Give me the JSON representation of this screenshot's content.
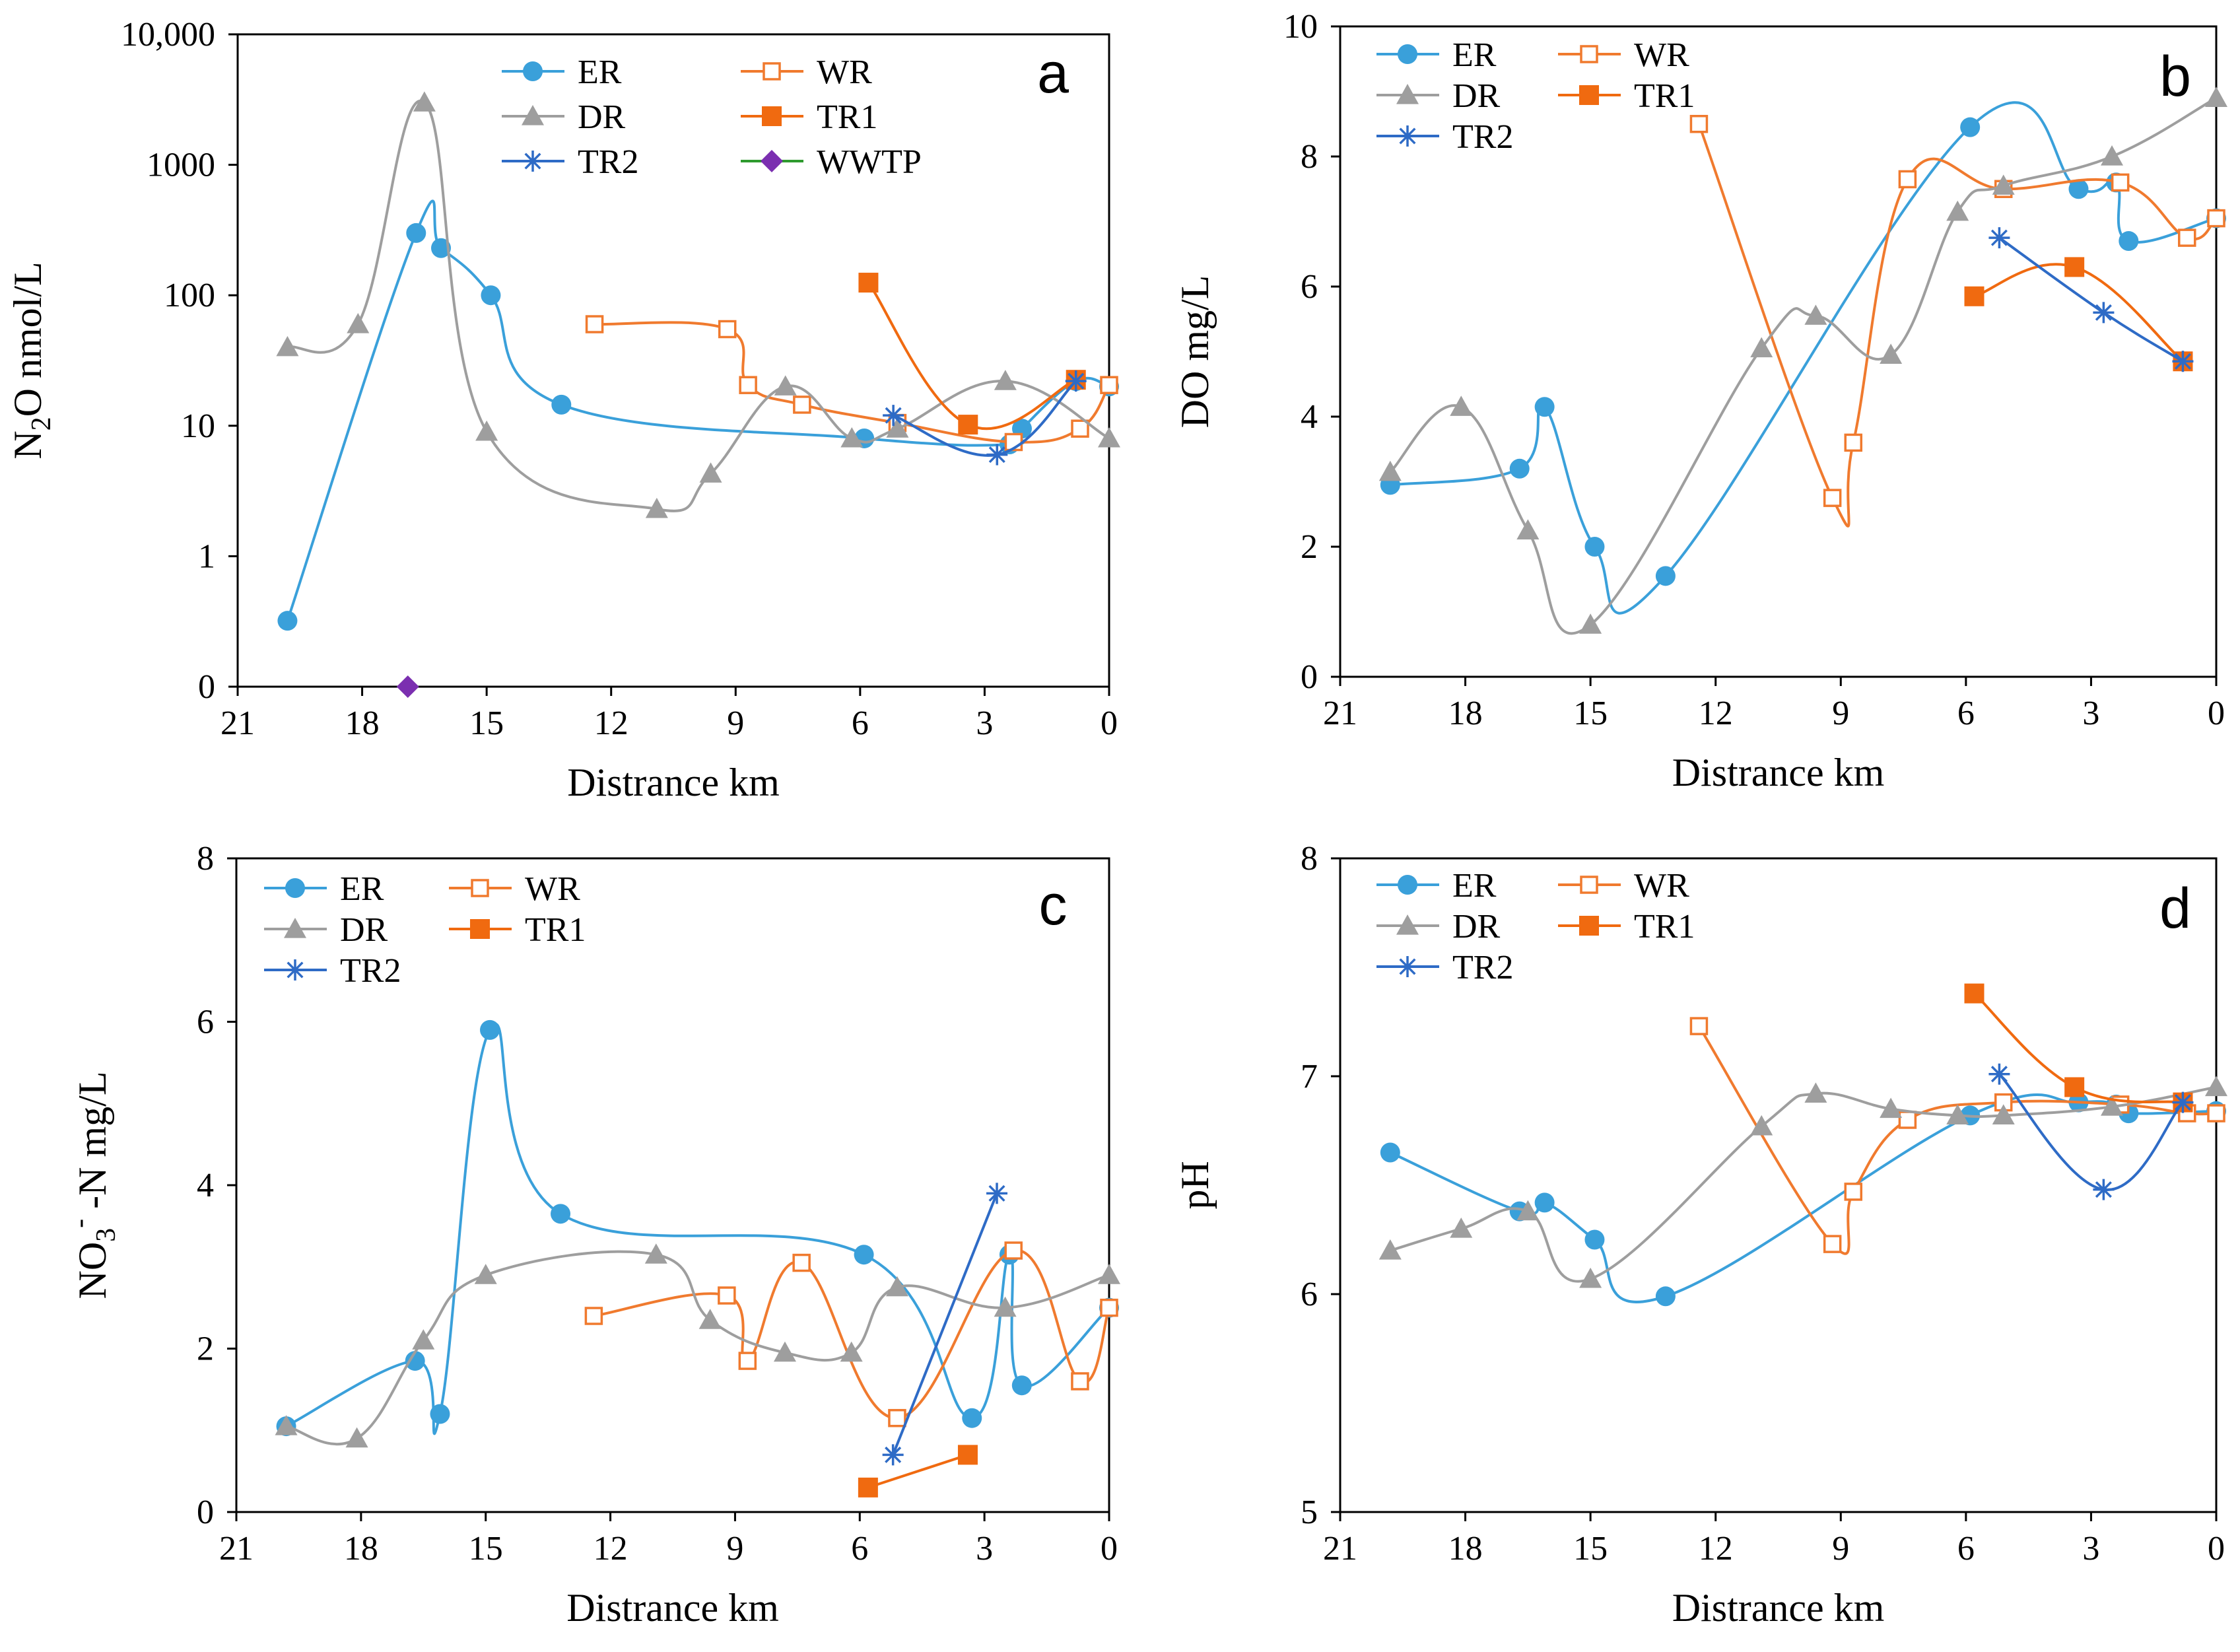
{
  "colors": {
    "ER": "#3AA0DA",
    "WR": "#F07A2E",
    "DR": "#9E9E9E",
    "TR1": "#F06A10",
    "TR2": "#2E6BC6",
    "WWTP_line": "#2E9A2E",
    "WWTP_marker": "#7B2FB0"
  },
  "chart_data": [
    {
      "id": "a",
      "type": "line",
      "panel_label": "a",
      "xlabel": "Distrance km",
      "ylabel": "N2O nmol/L",
      "ylabel_parts": {
        "base": "N",
        "sub": "2",
        "rest": "O nmol/L"
      },
      "xlim": [
        21,
        0
      ],
      "xticks": [
        "21",
        "18",
        "15",
        "12",
        "9",
        "6",
        "3",
        "0"
      ],
      "yscale": "log",
      "yticks": [
        {
          "value": 0.1,
          "label": "0"
        },
        {
          "value": 1,
          "label": "1"
        },
        {
          "value": 10,
          "label": "10"
        },
        {
          "value": 100,
          "label": "100"
        },
        {
          "value": 1000,
          "label": "1000"
        },
        {
          "value": 10000,
          "label": "10,000"
        }
      ],
      "series": [
        {
          "name": "ER",
          "marker": "circle",
          "x": [
            19.8,
            16.7,
            16.1,
            14.9,
            13.2,
            5.9,
            2.4,
            2.1,
            0.8,
            0
          ],
          "y": [
            0.32,
            300,
            230,
            100,
            14.5,
            8.0,
            7.2,
            9.5,
            22,
            20
          ]
        },
        {
          "name": "WR",
          "marker": "square-open",
          "x": [
            12.4,
            9.2,
            8.7,
            7.4,
            5.1,
            2.3,
            0.7,
            0
          ],
          "y": [
            60,
            55,
            20.5,
            14.5,
            10.5,
            7.5,
            9.5,
            20.5
          ]
        },
        {
          "name": "DR",
          "marker": "triangle",
          "x": [
            19.8,
            18.1,
            16.5,
            15.0,
            10.9,
            9.6,
            7.8,
            6.2,
            5.1,
            2.5,
            0
          ],
          "y": [
            40,
            60,
            3000,
            9.0,
            2.3,
            4.3,
            20,
            8.0,
            9.5,
            22,
            8.0
          ]
        },
        {
          "name": "TR1",
          "marker": "square",
          "x": [
            5.8,
            3.4,
            0.8
          ],
          "y": [
            125,
            10.2,
            22.5
          ]
        },
        {
          "name": "TR2",
          "marker": "star",
          "x": [
            5.2,
            2.7,
            0.8
          ],
          "y": [
            12,
            6.0,
            22
          ]
        },
        {
          "name": "WWTP",
          "marker": "diamond",
          "x": [
            16.9
          ],
          "y": [
            0.1
          ]
        }
      ],
      "legend": [
        "ER",
        "WR",
        "DR",
        "TR1",
        "TR2",
        "WWTP"
      ]
    },
    {
      "id": "b",
      "type": "line",
      "panel_label": "b",
      "xlabel": "Distrance km",
      "ylabel": "DO mg/L",
      "xlim": [
        21,
        0
      ],
      "xticks": [
        "21",
        "18",
        "15",
        "12",
        "9",
        "6",
        "3",
        "0"
      ],
      "ylim": [
        0,
        10
      ],
      "yticks": [
        {
          "value": 0,
          "label": "0"
        },
        {
          "value": 2,
          "label": "2"
        },
        {
          "value": 4,
          "label": "4"
        },
        {
          "value": 6,
          "label": "6"
        },
        {
          "value": 8,
          "label": "8"
        },
        {
          "value": 10,
          "label": "10"
        }
      ],
      "series": [
        {
          "name": "ER",
          "marker": "circle",
          "x": [
            19.8,
            16.7,
            16.1,
            14.9,
            13.2,
            5.9,
            3.3,
            2.4,
            2.1,
            0
          ],
          "y": [
            2.95,
            3.2,
            4.15,
            2.0,
            1.55,
            8.45,
            7.5,
            7.6,
            6.7,
            7.05
          ]
        },
        {
          "name": "WR",
          "marker": "square-open",
          "x": [
            12.4,
            9.2,
            8.7,
            7.4,
            5.1,
            2.3,
            0.7,
            0
          ],
          "y": [
            8.5,
            2.75,
            3.6,
            7.65,
            7.5,
            7.6,
            6.75,
            7.05
          ]
        },
        {
          "name": "DR",
          "marker": "triangle",
          "x": [
            19.8,
            18.1,
            16.5,
            15.0,
            10.9,
            9.6,
            7.8,
            6.2,
            5.1,
            2.5,
            0
          ],
          "y": [
            3.15,
            4.15,
            2.25,
            0.8,
            5.05,
            5.55,
            4.95,
            7.15,
            7.55,
            8.0,
            8.9
          ]
        },
        {
          "name": "TR1",
          "marker": "square",
          "x": [
            5.8,
            3.4,
            0.8
          ],
          "y": [
            5.85,
            6.3,
            4.85
          ]
        },
        {
          "name": "TR2",
          "marker": "star",
          "x": [
            5.2,
            2.7,
            0.8
          ],
          "y": [
            6.75,
            5.6,
            4.85
          ]
        }
      ],
      "legend": [
        "ER",
        "WR",
        "DR",
        "TR1",
        "TR2"
      ]
    },
    {
      "id": "c",
      "type": "line",
      "panel_label": "c",
      "xlabel": "Distrance km",
      "ylabel": "NO3- -N mg/L",
      "ylabel_parts": {
        "base": "NO",
        "sub": "3",
        "sup": "-",
        "rest": " -N mg/L"
      },
      "xlim": [
        21,
        0
      ],
      "xticks": [
        "21",
        "18",
        "15",
        "12",
        "9",
        "6",
        "3",
        "0"
      ],
      "ylim": [
        0,
        8
      ],
      "yticks": [
        {
          "value": 0,
          "label": "0"
        },
        {
          "value": 2,
          "label": "2"
        },
        {
          "value": 4,
          "label": "4"
        },
        {
          "value": 6,
          "label": "6"
        },
        {
          "value": 8,
          "label": "8"
        }
      ],
      "series": [
        {
          "name": "ER",
          "marker": "circle",
          "x": [
            19.8,
            16.7,
            16.1,
            14.9,
            13.2,
            5.9,
            3.3,
            2.4,
            2.1,
            0
          ],
          "y": [
            1.05,
            1.85,
            1.2,
            5.9,
            3.65,
            3.15,
            1.15,
            3.15,
            1.55,
            2.5
          ]
        },
        {
          "name": "WR",
          "marker": "square-open",
          "x": [
            12.4,
            9.2,
            8.7,
            7.4,
            5.1,
            2.3,
            0.7,
            0
          ],
          "y": [
            2.4,
            2.65,
            1.85,
            3.05,
            1.15,
            3.2,
            1.6,
            2.5
          ]
        },
        {
          "name": "DR",
          "marker": "triangle",
          "x": [
            19.8,
            18.1,
            16.5,
            15.0,
            10.9,
            9.6,
            7.8,
            6.2,
            5.1,
            2.5,
            0
          ],
          "y": [
            1.05,
            0.9,
            2.1,
            2.9,
            3.15,
            2.35,
            1.95,
            1.95,
            2.75,
            2.5,
            2.9
          ]
        },
        {
          "name": "TR1",
          "marker": "square",
          "x": [
            5.8,
            3.4
          ],
          "y": [
            0.3,
            0.7
          ]
        },
        {
          "name": "TR2",
          "marker": "star",
          "x": [
            5.2,
            2.7
          ],
          "y": [
            0.7,
            3.9
          ]
        }
      ],
      "legend": [
        "ER",
        "WR",
        "DR",
        "TR1",
        "TR2"
      ]
    },
    {
      "id": "d",
      "type": "line",
      "panel_label": "d",
      "xlabel": "Distrance km",
      "ylabel": "pH",
      "xlim": [
        21,
        0
      ],
      "xticks": [
        "21",
        "18",
        "15",
        "12",
        "9",
        "6",
        "3",
        "0"
      ],
      "ylim": [
        5,
        8
      ],
      "yticks": [
        {
          "value": 5,
          "label": "5"
        },
        {
          "value": 6,
          "label": "6"
        },
        {
          "value": 7,
          "label": "7"
        },
        {
          "value": 8,
          "label": "8"
        }
      ],
      "series": [
        {
          "name": "ER",
          "marker": "circle",
          "x": [
            19.8,
            16.7,
            16.1,
            14.9,
            13.2,
            5.9,
            3.3,
            2.4,
            2.1,
            0
          ],
          "y": [
            6.65,
            6.38,
            6.42,
            6.25,
            5.99,
            6.82,
            6.88,
            6.87,
            6.83,
            6.84
          ]
        },
        {
          "name": "WR",
          "marker": "square-open",
          "x": [
            12.4,
            9.2,
            8.7,
            7.4,
            5.1,
            2.3,
            0.7,
            0
          ],
          "y": [
            7.23,
            6.23,
            6.47,
            6.8,
            6.88,
            6.87,
            6.83,
            6.83
          ]
        },
        {
          "name": "DR",
          "marker": "triangle",
          "x": [
            19.8,
            18.1,
            16.5,
            15.0,
            10.9,
            9.6,
            7.8,
            6.2,
            5.1,
            2.5,
            0
          ],
          "y": [
            6.2,
            6.3,
            6.38,
            6.07,
            6.77,
            6.92,
            6.85,
            6.82,
            6.82,
            6.86,
            6.95
          ]
        },
        {
          "name": "TR1",
          "marker": "square",
          "x": [
            5.8,
            3.4,
            0.8
          ],
          "y": [
            7.38,
            6.95,
            6.88
          ]
        },
        {
          "name": "TR2",
          "marker": "star",
          "x": [
            5.2,
            2.7,
            0.8
          ],
          "y": [
            7.01,
            6.48,
            6.88
          ]
        }
      ],
      "legend": [
        "ER",
        "WR",
        "DR",
        "TR1",
        "TR2"
      ]
    }
  ]
}
